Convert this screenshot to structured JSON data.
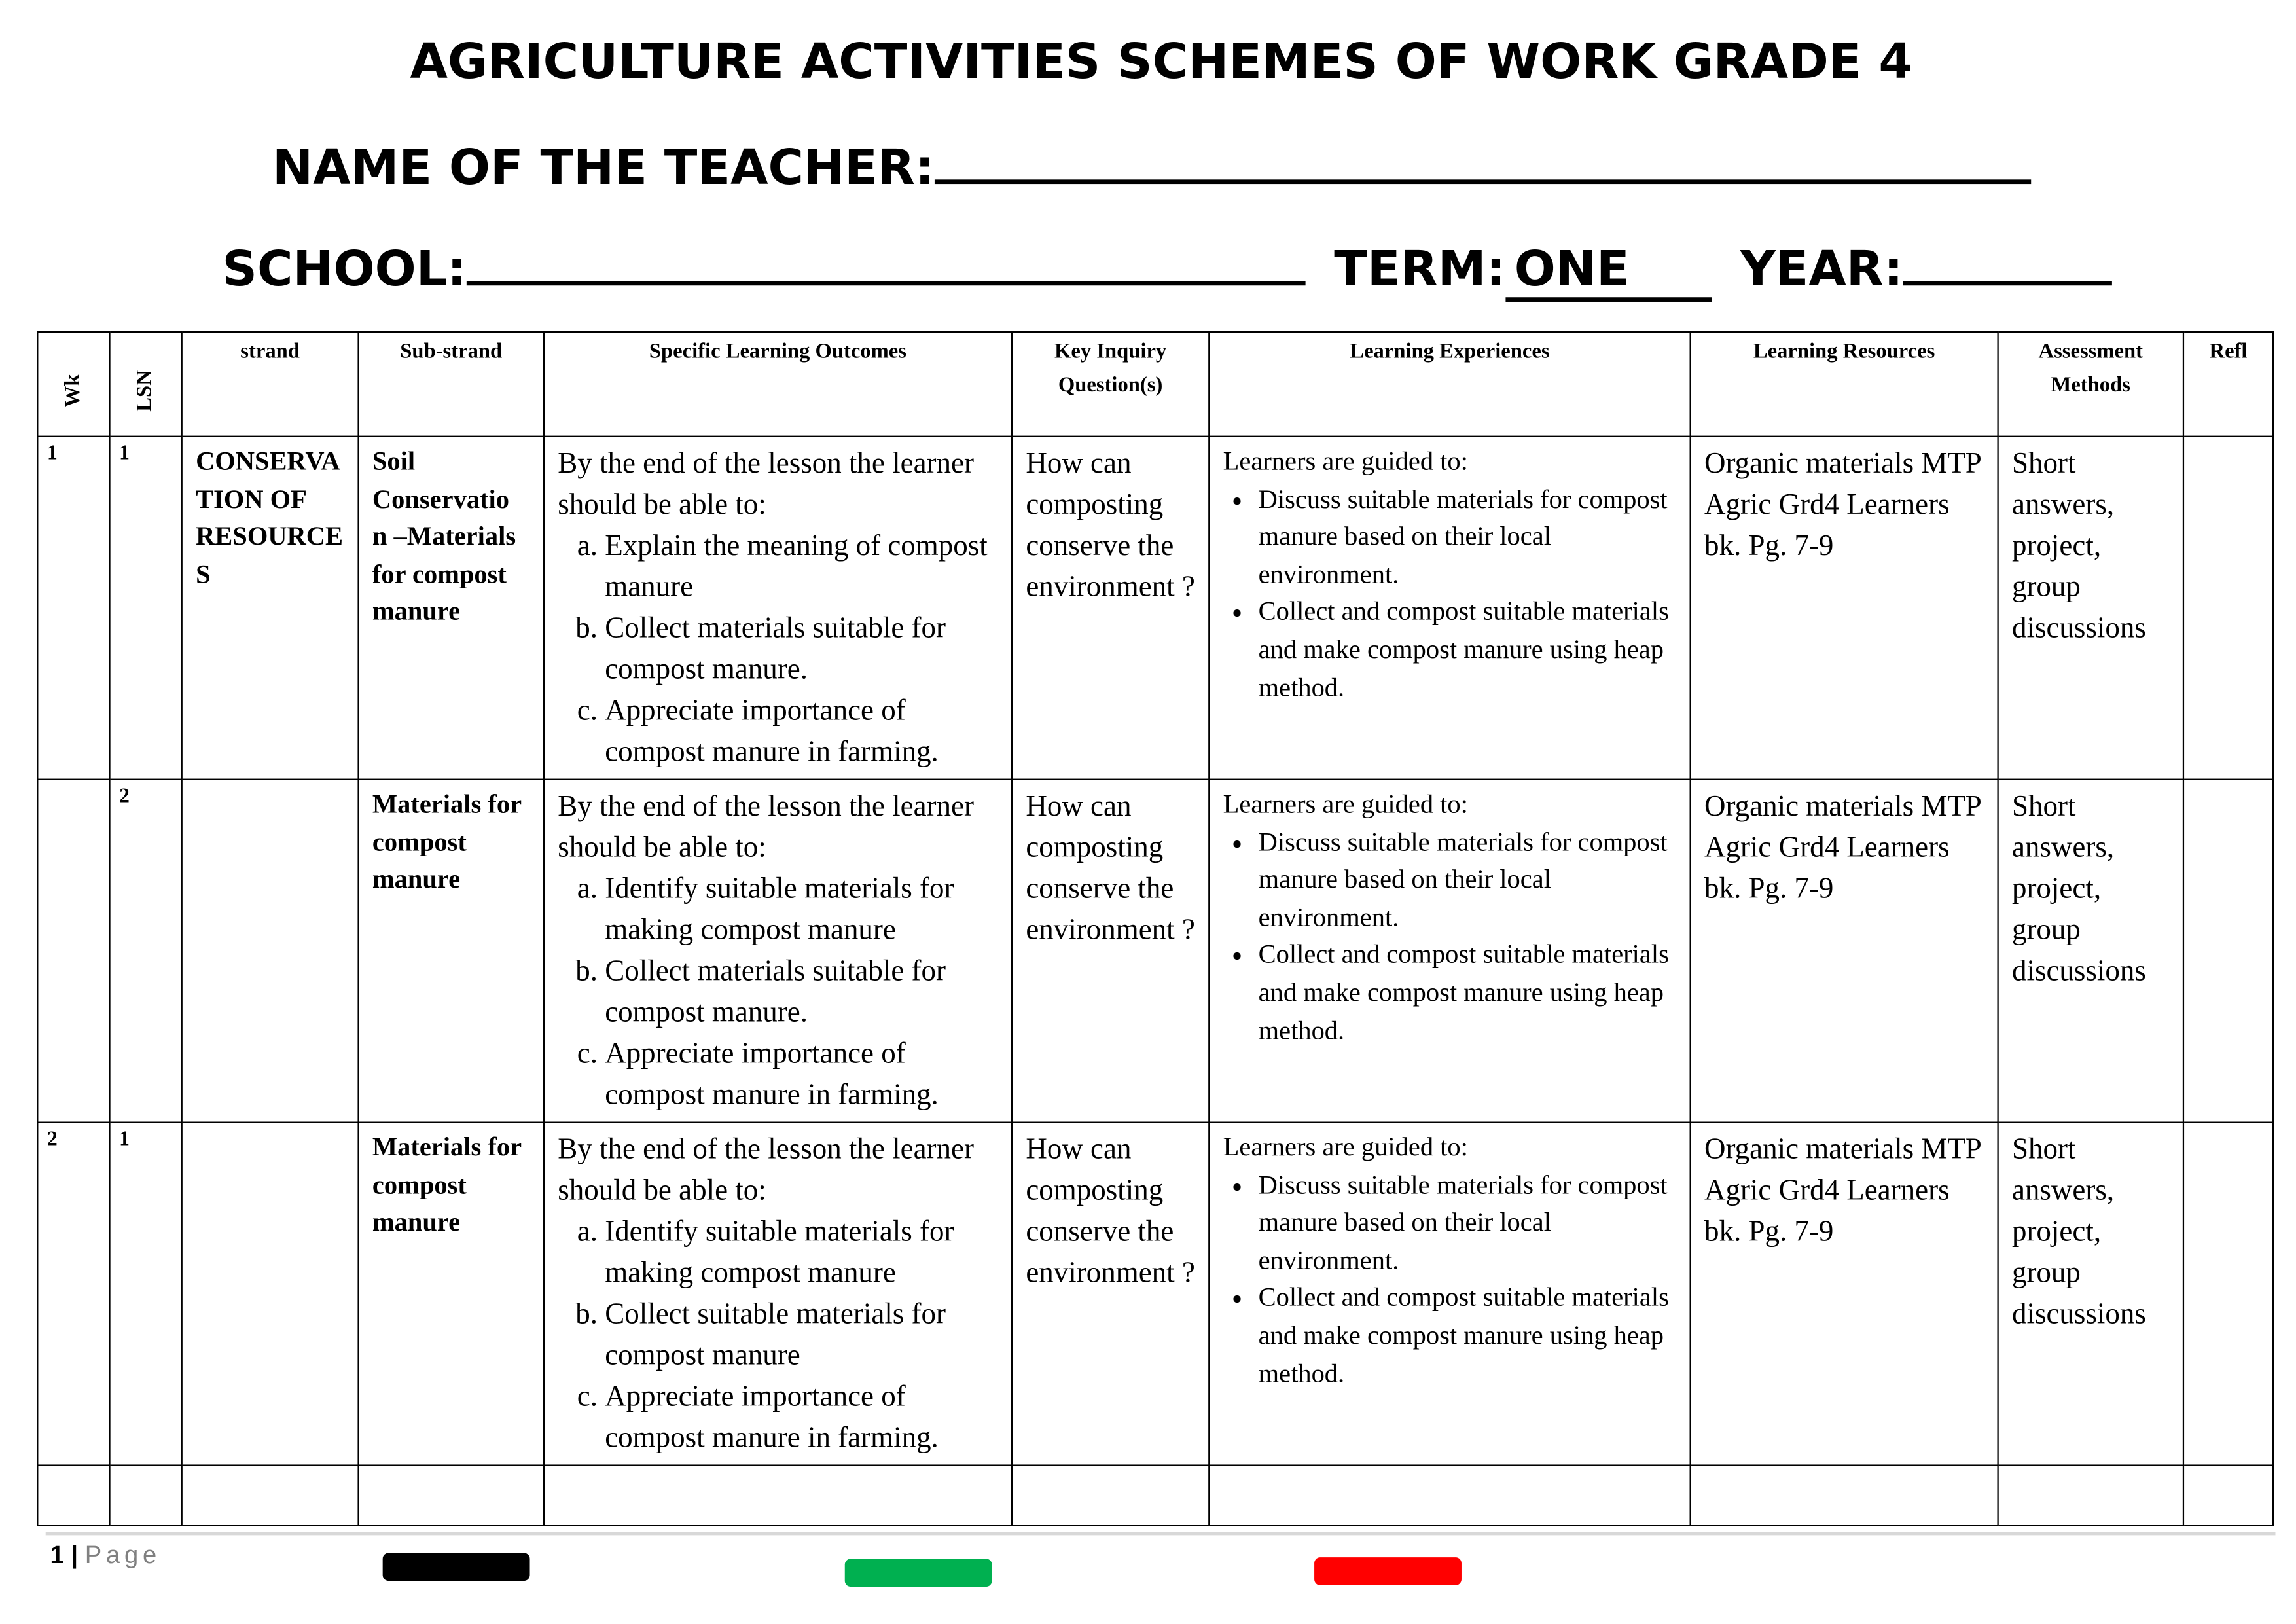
{
  "header": {
    "title": "AGRICULTURE ACTIVITIES SCHEMES OF WORK GRADE 4",
    "teacher_label": "NAME OF THE TEACHER:",
    "school_label": "SCHOOL:",
    "term_label": "TERM:",
    "term_value": "ONE",
    "year_label": "YEAR:"
  },
  "table": {
    "columns": [
      "Wk",
      "LSN",
      "strand",
      "Sub-strand",
      "Specific Learning Outcomes",
      "Key Inquiry Question(s)",
      "Learning Experiences",
      "Learning Resources",
      "Assessment Methods",
      "Refl"
    ],
    "rows": [
      {
        "wk": "1",
        "lsn": "1",
        "strand": "CONSERVA TION OF RESOURCE S",
        "substrand": "Soil Conservatio n –Materials for compost manure",
        "slo_intro": "By the end of the lesson the learner should be able to:",
        "slo": [
          "Explain the meaning of compost manure",
          "Collect materials suitable for compost manure.",
          "Appreciate importance of compost manure in farming."
        ],
        "kiq": "How can composting conserve the environment ?",
        "le_intro": "Learners are guided to:",
        "le": [
          "Discuss suitable materials for compost manure based on their local environment.",
          "Collect and compost suitable materials and make compost manure using heap method."
        ],
        "resources": "Organic materials MTP Agric Grd4 Learners bk. Pg. 7-9",
        "assessment": "Short answers, project, group discussions",
        "refl": ""
      },
      {
        "wk": "",
        "lsn": "2",
        "strand": "",
        "substrand": "Materials for compost manure",
        "slo_intro": "By the end of the lesson the learner should be able to:",
        "slo": [
          "Identify suitable materials for making compost manure",
          "Collect materials suitable for compost manure.",
          "Appreciate importance of compost manure in farming."
        ],
        "kiq": "How can composting conserve the environment ?",
        "le_intro": "Learners are guided to:",
        "le": [
          "Discuss suitable materials for compost manure based on their local environment.",
          "Collect and compost suitable materials and make compost manure using heap method."
        ],
        "resources": "Organic materials MTP Agric Grd4 Learners bk. Pg. 7-9",
        "assessment": "Short answers, project, group discussions",
        "refl": ""
      },
      {
        "wk": "2",
        "lsn": "1",
        "strand": "",
        "substrand": "Materials for compost manure",
        "slo_intro": "By the end of the lesson the learner should be able to:",
        "slo": [
          "Identify suitable materials for making compost manure",
          "Collect suitable materials for compost manure",
          "Appreciate importance of compost manure in farming."
        ],
        "kiq": "How can composting conserve the environment ?",
        "le_intro": "Learners are guided to:",
        "le": [
          "Discuss suitable materials for compost manure based on their local environment.",
          "Collect and compost suitable materials and make compost manure using heap method."
        ],
        "resources": "Organic materials MTP Agric Grd4 Learners bk. Pg. 7-9",
        "assessment": "Short answers, project, group discussions",
        "refl": ""
      }
    ]
  },
  "footer": {
    "page_number": "1",
    "page_label": "Page",
    "color_bars": [
      "#000000",
      "#00b050",
      "#ff0000"
    ]
  }
}
